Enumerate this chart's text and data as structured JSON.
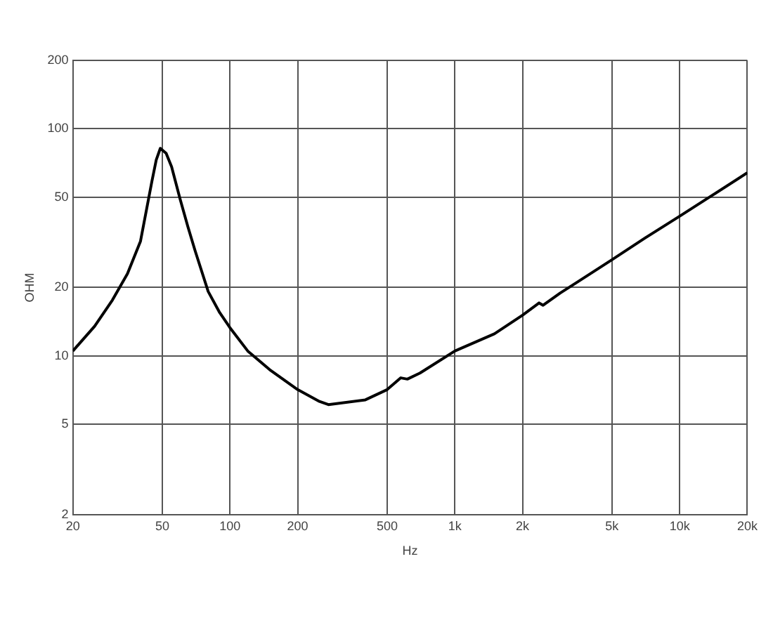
{
  "chart_data": {
    "type": "line",
    "xlabel": "Hz",
    "ylabel": "OHM",
    "log": "xy",
    "grid": true,
    "marker": "none",
    "line_style": "solid",
    "xlim": [
      20,
      20000
    ],
    "ylim": [
      2,
      200
    ],
    "xticks": [
      20,
      50,
      100,
      200,
      500,
      {
        "value": 1000,
        "label": "1k"
      },
      {
        "value": 2000,
        "label": "2k"
      },
      {
        "value": 5000,
        "label": "5k"
      },
      {
        "value": 10000,
        "label": "10k"
      },
      {
        "value": 20000,
        "label": "20k"
      }
    ],
    "yticks": [
      2,
      5,
      10,
      20,
      50,
      100,
      200
    ],
    "series": [
      {
        "color": "#000000",
        "x": [
          20,
          25,
          30,
          35,
          40,
          45,
          47,
          49,
          52,
          55,
          60,
          65,
          70,
          80,
          90,
          100,
          120,
          150,
          200,
          250,
          274,
          400,
          500,
          575,
          615,
          700,
          1000,
          1500,
          2000,
          2370,
          2470,
          2940,
          3500,
          5000,
          7000,
          10000,
          14000,
          20000
        ],
        "values": [
          10.5,
          13.5,
          17.6,
          23,
          32,
          59,
          73,
          82,
          78,
          68,
          49,
          37,
          29,
          19.2,
          15.5,
          13.3,
          10.5,
          8.7,
          7.1,
          6.3,
          6.1,
          6.4,
          7.1,
          8.0,
          7.9,
          8.4,
          10.5,
          12.5,
          15.1,
          17.1,
          16.7,
          18.9,
          21.1,
          26.5,
          33,
          41.2,
          51,
          64
        ]
      }
    ]
  }
}
